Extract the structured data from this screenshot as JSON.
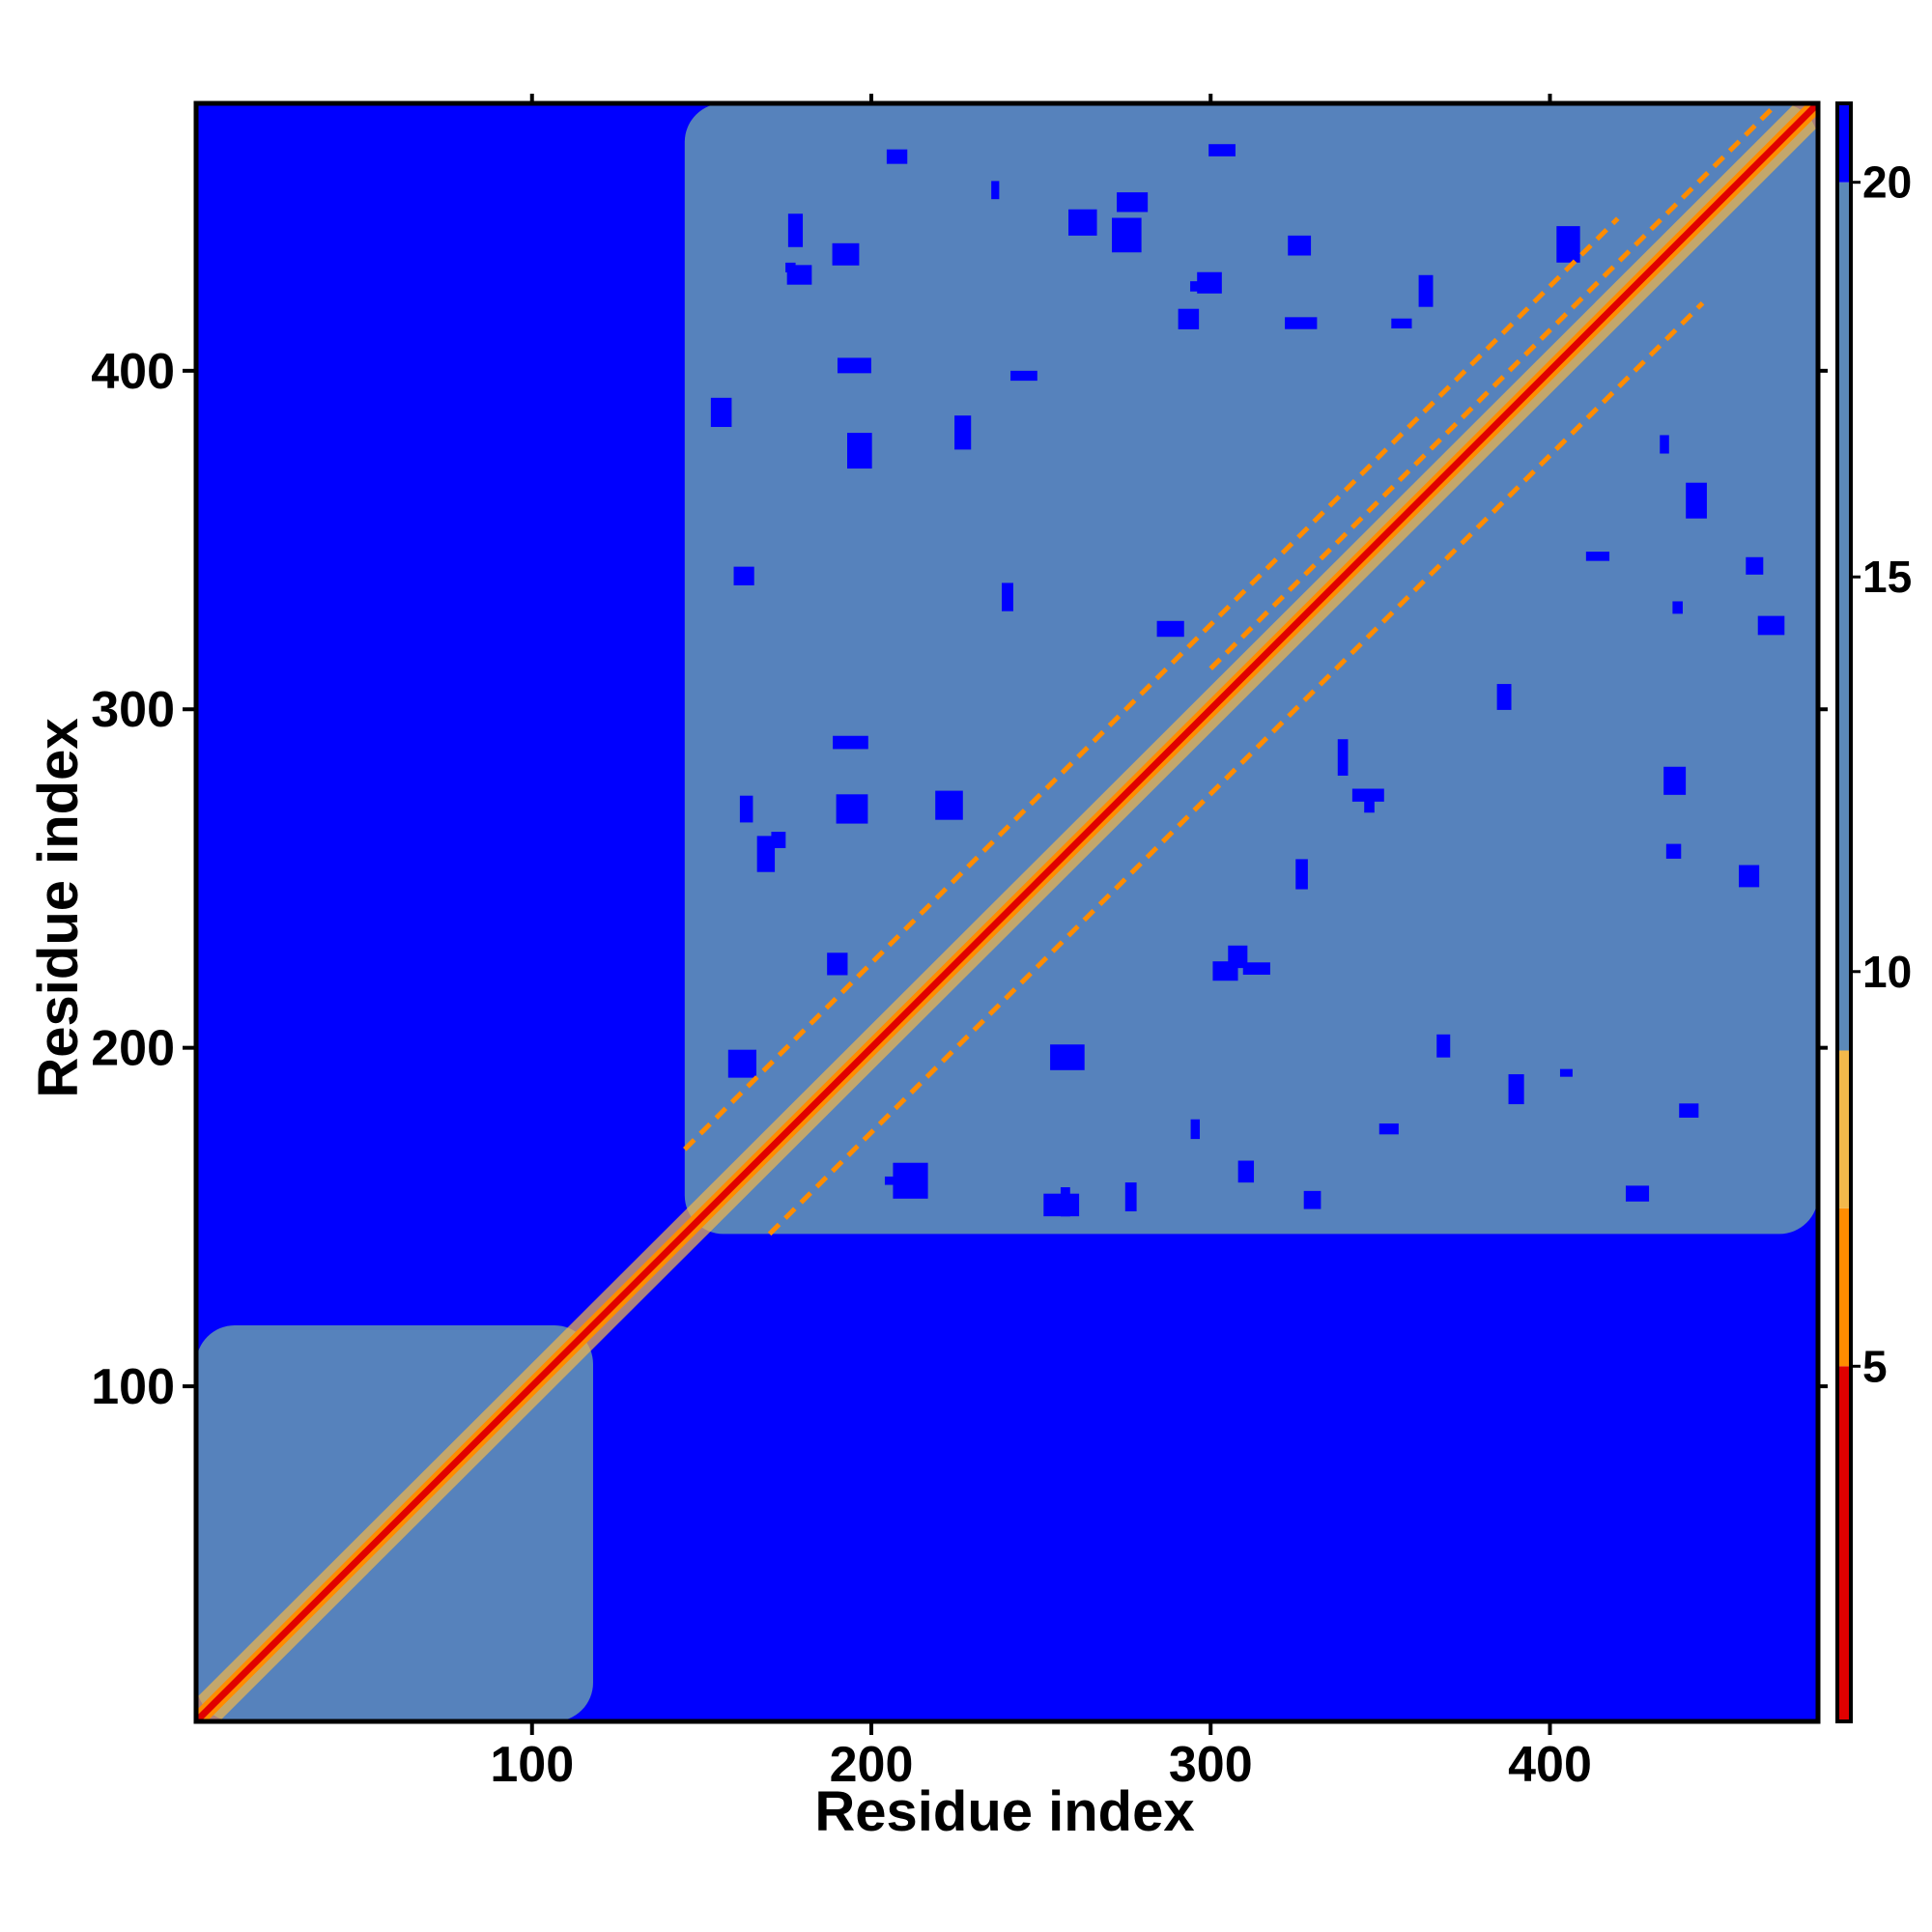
{
  "chart_data": {
    "type": "heatmap",
    "title": "",
    "xlabel": "Residue index",
    "ylabel": "Residue index",
    "xlim": [
      1,
      479
    ],
    "ylim": [
      1,
      479
    ],
    "x_ticks": [
      100,
      200,
      300,
      400
    ],
    "y_ticks": [
      100,
      200,
      300,
      400
    ],
    "x_tick_labels": [
      "100",
      "200",
      "300",
      "400"
    ],
    "y_tick_labels": [
      "100",
      "200",
      "300",
      "400"
    ],
    "colorbar": {
      "range": [
        0.5,
        21
      ],
      "ticks": [
        5,
        10,
        15,
        20
      ],
      "tick_labels": [
        "5",
        "10",
        "15",
        "20"
      ],
      "colors": {
        "near": "#e00000",
        "mid": "#ff8c00",
        "contact": "#f2b84b",
        "far": "#5b89b8",
        "max": "#0000ff"
      }
    },
    "domains": [
      {
        "from": 1,
        "to": 118,
        "value": 17
      },
      {
        "from": 145,
        "to": 479,
        "value": 17
      }
    ],
    "diagonal": {
      "from": 1,
      "to": 479,
      "value": 1
    },
    "helix_bands": [
      {
        "offset": 25,
        "from": 145,
        "to": 420,
        "value": 6
      },
      {
        "offset": -25,
        "from": 170,
        "to": 445,
        "value": 6
      },
      {
        "offset": 12,
        "from": 300,
        "to": 470,
        "value": 7
      }
    ]
  }
}
